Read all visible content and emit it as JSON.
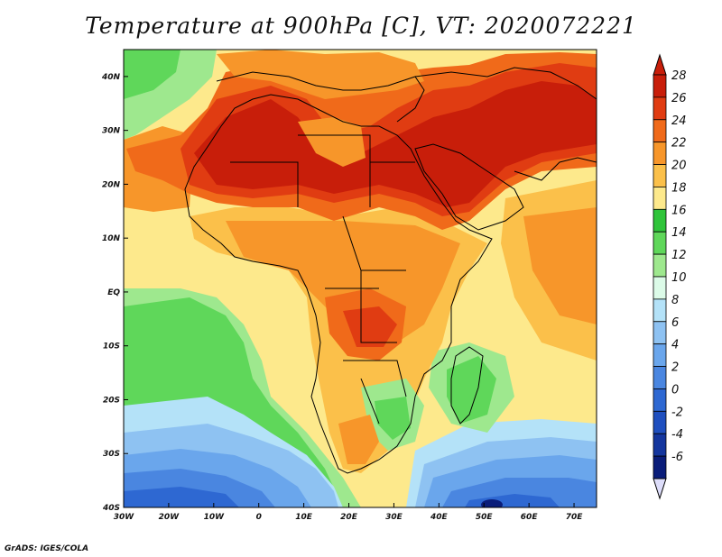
{
  "title": "Temperature at 900hPa [C], VT: 2020072221",
  "credit": "GrADS: IGES/COLA",
  "map": {
    "lon_range": [
      -30,
      75
    ],
    "lat_range": [
      -40,
      45
    ],
    "x_ticks": [
      {
        "value": -30,
        "label": "30W"
      },
      {
        "value": -20,
        "label": "20W"
      },
      {
        "value": -10,
        "label": "10W"
      },
      {
        "value": 0,
        "label": "0"
      },
      {
        "value": 10,
        "label": "10E"
      },
      {
        "value": 20,
        "label": "20E"
      },
      {
        "value": 30,
        "label": "30E"
      },
      {
        "value": 40,
        "label": "40E"
      },
      {
        "value": 50,
        "label": "50E"
      },
      {
        "value": 60,
        "label": "60E"
      },
      {
        "value": 70,
        "label": "70E"
      }
    ],
    "y_ticks": [
      {
        "value": 40,
        "label": "40N"
      },
      {
        "value": 30,
        "label": "30N"
      },
      {
        "value": 20,
        "label": "20N"
      },
      {
        "value": 10,
        "label": "10N"
      },
      {
        "value": 0,
        "label": "EQ"
      },
      {
        "value": -10,
        "label": "10S"
      },
      {
        "value": -20,
        "label": "20S"
      },
      {
        "value": -30,
        "label": "30S"
      },
      {
        "value": -40,
        "label": "40S"
      }
    ]
  },
  "colorbar": {
    "levels": [
      {
        "label": "28",
        "color": "#c81e0a"
      },
      {
        "label": "26",
        "color": "#e03c12"
      },
      {
        "label": "24",
        "color": "#f06a1a"
      },
      {
        "label": "22",
        "color": "#f7962a"
      },
      {
        "label": "20",
        "color": "#fbc04a"
      },
      {
        "label": "18",
        "color": "#fde98c"
      },
      {
        "label": "16",
        "color": "#2fc43a"
      },
      {
        "label": "14",
        "color": "#5fd75a"
      },
      {
        "label": "12",
        "color": "#9ee88e"
      },
      {
        "label": "10",
        "color": "#dcfbe8"
      },
      {
        "label": "8",
        "color": "#b4e2f8"
      },
      {
        "label": "6",
        "color": "#8ec2f2"
      },
      {
        "label": "4",
        "color": "#6aa6ec"
      },
      {
        "label": "2",
        "color": "#4a86e0"
      },
      {
        "label": "0",
        "color": "#2e68d2"
      },
      {
        "label": "-2",
        "color": "#1f4fbf"
      },
      {
        "label": "-4",
        "color": "#14369e"
      },
      {
        "label": "-6",
        "color": "#0a1d7a"
      }
    ],
    "top_color": "#c81e0a",
    "bottom_color": "#ddddfa"
  }
}
